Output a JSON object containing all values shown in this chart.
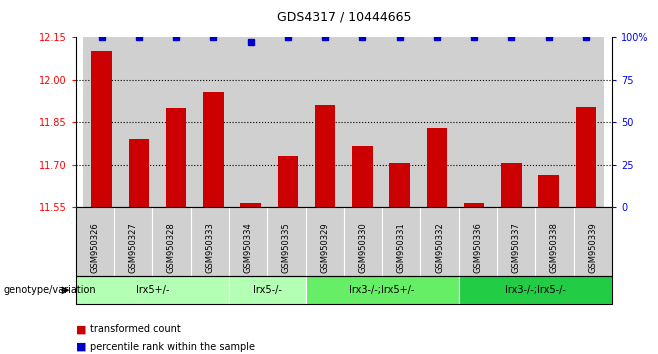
{
  "title": "GDS4317 / 10444665",
  "samples": [
    "GSM950326",
    "GSM950327",
    "GSM950328",
    "GSM950333",
    "GSM950334",
    "GSM950335",
    "GSM950329",
    "GSM950330",
    "GSM950331",
    "GSM950332",
    "GSM950336",
    "GSM950337",
    "GSM950338",
    "GSM950339"
  ],
  "bar_values": [
    12.1,
    11.79,
    11.9,
    11.955,
    11.565,
    11.73,
    11.91,
    11.765,
    11.705,
    11.83,
    11.565,
    11.705,
    11.665,
    11.905
  ],
  "percentile_values": [
    100,
    100,
    100,
    100,
    97,
    100,
    100,
    100,
    100,
    100,
    100,
    100,
    100,
    100
  ],
  "bar_color": "#cc0000",
  "percentile_color": "#0000cc",
  "ylim_left": [
    11.55,
    12.15
  ],
  "ylim_right": [
    0,
    100
  ],
  "yticks_left": [
    11.55,
    11.7,
    11.85,
    12.0,
    12.15
  ],
  "yticks_right": [
    0,
    25,
    50,
    75,
    100
  ],
  "ytick_right_labels": [
    "0",
    "25",
    "50",
    "75",
    "100%"
  ],
  "grid_values": [
    11.7,
    11.85,
    12.0
  ],
  "groups": [
    {
      "label": "Irx5+/-",
      "start": 0,
      "end": 3,
      "color": "#b3ffb3"
    },
    {
      "label": "Irx5-/-",
      "start": 4,
      "end": 5,
      "color": "#b3ffb3"
    },
    {
      "label": "Irx3-/-;Irx5+/-",
      "start": 6,
      "end": 9,
      "color": "#66ee66"
    },
    {
      "label": "Irx3-/-;Irx5-/-",
      "start": 10,
      "end": 13,
      "color": "#22cc44"
    }
  ],
  "group_label": "genotype/variation",
  "legend_red_label": "transformed count",
  "legend_blue_label": "percentile rank within the sample",
  "sample_box_color": "#d0d0d0",
  "bar_width": 0.55,
  "figwidth": 6.58,
  "figheight": 3.54,
  "dpi": 100
}
